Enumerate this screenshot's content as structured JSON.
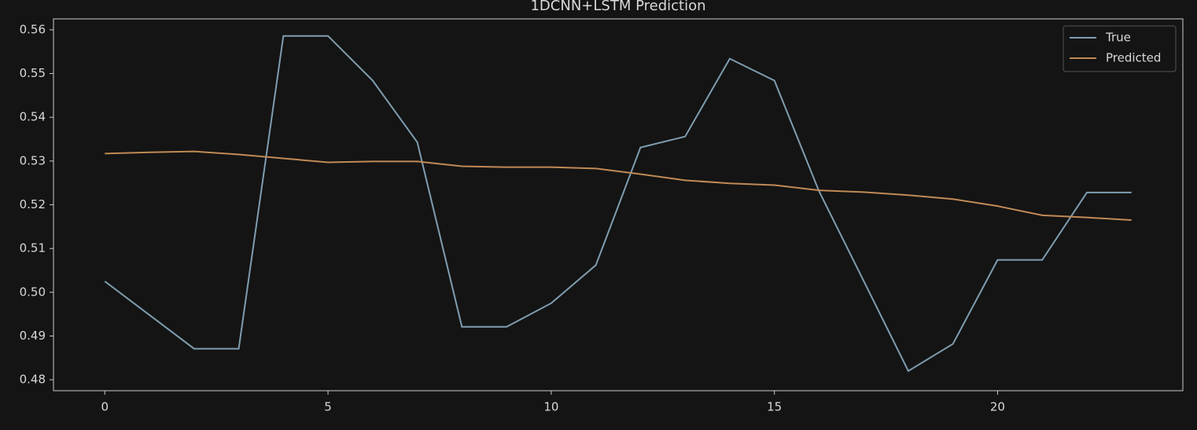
{
  "chart_data": {
    "type": "line",
    "title": "1DCNN+LSTM Prediction",
    "x": [
      0,
      1,
      2,
      3,
      4,
      5,
      6,
      7,
      8,
      9,
      10,
      11,
      12,
      13,
      14,
      15,
      16,
      17,
      18,
      19,
      20,
      21,
      22,
      23
    ],
    "series": [
      {
        "name": "True",
        "color": "#7f9db0",
        "values": [
          0.5025,
          0.4948,
          0.4871,
          0.4871,
          0.5586,
          0.5586,
          0.5484,
          0.5343,
          0.4921,
          0.4921,
          0.4975,
          0.5062,
          0.5331,
          0.5356,
          0.5534,
          0.5484,
          0.5231,
          0.5026,
          0.482,
          0.4882,
          0.5074,
          0.5074,
          0.5228,
          0.5228
        ]
      },
      {
        "name": "Predicted",
        "color": "#c08a55",
        "values": [
          0.5317,
          0.532,
          0.5322,
          0.5315,
          0.5306,
          0.5297,
          0.5299,
          0.5299,
          0.5288,
          0.5286,
          0.5286,
          0.5283,
          0.527,
          0.5256,
          0.5249,
          0.5245,
          0.5233,
          0.5229,
          0.5222,
          0.5213,
          0.5197,
          0.5176,
          0.5171,
          0.5165
        ]
      }
    ],
    "xlim": [
      -1.15,
      24.15
    ],
    "xticks": [
      0,
      5,
      10,
      15,
      20
    ],
    "ylim": [
      0.4775,
      0.5625
    ],
    "yticks": [
      0.48,
      0.49,
      {
        "value": 0.5,
        "label": "0.50"
      },
      0.51,
      0.52,
      0.53,
      0.54,
      0.55,
      0.56
    ],
    "legend": "upper right"
  }
}
